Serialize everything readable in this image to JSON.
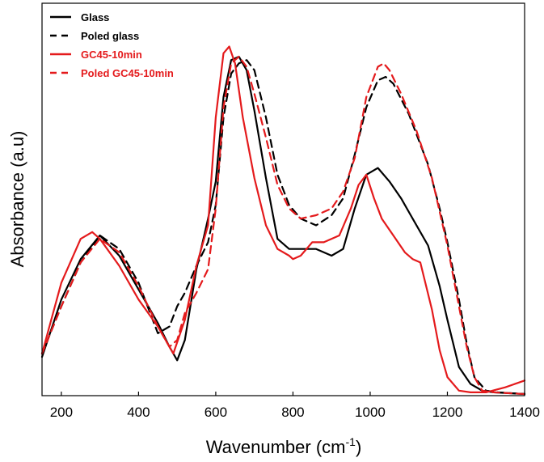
{
  "chart_data": {
    "type": "line",
    "xlabel": "Wavenumber (cm",
    "xlabel_sup": "-1",
    "xlabel_tail": ")",
    "ylabel": "Absorbance (a.u)",
    "xlim": [
      150,
      1400
    ],
    "ylim": [
      0,
      1
    ],
    "xticks": [
      200,
      400,
      600,
      800,
      1000,
      1200,
      1400
    ],
    "yticks_shown": false,
    "grid": false,
    "legend_position": "top-left",
    "series": [
      {
        "name": "Glass",
        "color": "#000000",
        "dash": "solid",
        "x": [
          150,
          200,
          250,
          300,
          350,
          400,
          450,
          480,
          500,
          520,
          550,
          580,
          600,
          620,
          640,
          660,
          680,
          700,
          730,
          760,
          790,
          820,
          860,
          900,
          930,
          960,
          990,
          1020,
          1050,
          1080,
          1110,
          1150,
          1180,
          1200,
          1230,
          1260,
          1290,
          1320,
          1400
        ],
        "y": [
          0.11,
          0.28,
          0.4,
          0.47,
          0.41,
          0.31,
          0.21,
          0.14,
          0.1,
          0.16,
          0.37,
          0.52,
          0.63,
          0.88,
          0.99,
          1.0,
          0.96,
          0.84,
          0.64,
          0.46,
          0.43,
          0.43,
          0.43,
          0.41,
          0.43,
          0.55,
          0.65,
          0.67,
          0.63,
          0.58,
          0.52,
          0.44,
          0.32,
          0.22,
          0.08,
          0.03,
          0.01,
          0.005,
          0.0
        ]
      },
      {
        "name": "Poled glass",
        "color": "#000000",
        "dash": "dashed",
        "x": [
          150,
          200,
          250,
          300,
          350,
          400,
          450,
          480,
          500,
          520,
          550,
          580,
          600,
          620,
          640,
          660,
          680,
          700,
          730,
          760,
          790,
          820,
          860,
          900,
          930,
          960,
          990,
          1020,
          1040,
          1060,
          1100,
          1150,
          1180,
          1200,
          1230,
          1250,
          1270,
          1300,
          1330,
          1400
        ],
        "y": [
          0.12,
          0.26,
          0.39,
          0.47,
          0.43,
          0.33,
          0.18,
          0.2,
          0.26,
          0.3,
          0.38,
          0.45,
          0.56,
          0.82,
          0.95,
          0.98,
          0.99,
          0.96,
          0.82,
          0.65,
          0.56,
          0.52,
          0.5,
          0.53,
          0.58,
          0.71,
          0.85,
          0.93,
          0.94,
          0.92,
          0.83,
          0.68,
          0.55,
          0.45,
          0.28,
          0.15,
          0.05,
          0.01,
          0.005,
          0.0
        ]
      },
      {
        "name": "GC45-10min",
        "color": "#e41a1c",
        "dash": "solid",
        "x": [
          150,
          200,
          250,
          280,
          300,
          350,
          400,
          450,
          490,
          520,
          550,
          580,
          600,
          620,
          635,
          650,
          670,
          700,
          730,
          760,
          790,
          800,
          820,
          850,
          880,
          920,
          950,
          970,
          990,
          1010,
          1030,
          1060,
          1090,
          1110,
          1130,
          1160,
          1180,
          1200,
          1230,
          1260,
          1300,
          1350,
          1400
        ],
        "y": [
          0.12,
          0.33,
          0.46,
          0.48,
          0.46,
          0.38,
          0.28,
          0.2,
          0.12,
          0.22,
          0.38,
          0.5,
          0.82,
          1.01,
          1.03,
          0.98,
          0.82,
          0.64,
          0.5,
          0.43,
          0.41,
          0.4,
          0.41,
          0.45,
          0.45,
          0.47,
          0.55,
          0.62,
          0.65,
          0.58,
          0.52,
          0.47,
          0.42,
          0.4,
          0.39,
          0.25,
          0.13,
          0.05,
          0.01,
          0.005,
          0.005,
          0.02,
          0.04
        ]
      },
      {
        "name": "Poled GC45-10min",
        "color": "#e41a1c",
        "dash": "dashed",
        "x": [
          150,
          200,
          250,
          300,
          350,
          400,
          450,
          480,
          500,
          520,
          550,
          580,
          600,
          620,
          640,
          660,
          680,
          700,
          730,
          760,
          790,
          820,
          860,
          900,
          930,
          960,
          990,
          1020,
          1035,
          1050,
          1080,
          1120,
          1160,
          1200,
          1230,
          1250,
          1270,
          1290,
          1320,
          1400
        ],
        "y": [
          0.12,
          0.26,
          0.39,
          0.46,
          0.42,
          0.32,
          0.2,
          0.14,
          0.16,
          0.24,
          0.3,
          0.37,
          0.55,
          0.85,
          0.98,
          1.0,
          0.97,
          0.89,
          0.76,
          0.62,
          0.55,
          0.52,
          0.53,
          0.55,
          0.6,
          0.7,
          0.88,
          0.97,
          0.98,
          0.96,
          0.89,
          0.78,
          0.64,
          0.44,
          0.26,
          0.14,
          0.05,
          0.01,
          0.005,
          0.0
        ]
      }
    ]
  }
}
